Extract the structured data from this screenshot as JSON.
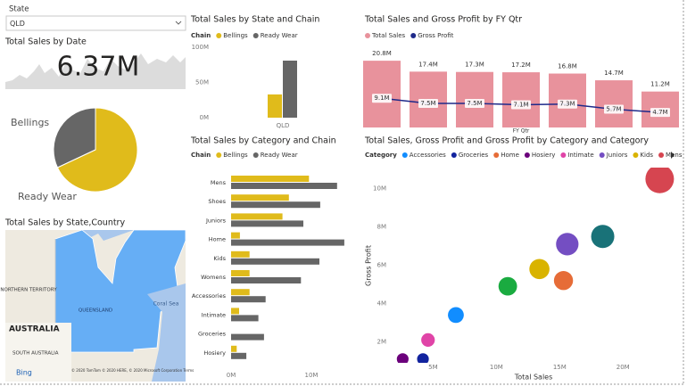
{
  "slicer": {
    "label": "State",
    "value": "QLD"
  },
  "card": {
    "title": "Total Sales by Date",
    "value": "6.37M"
  },
  "map": {
    "title": "Total Sales by State,Country",
    "labels": [
      "NORTHERN TERRITORY",
      "QUEENSLAND",
      "Coral Sea",
      "AUSTRALIA",
      "SOUTH AUSTRALIA"
    ],
    "provider": "Bing",
    "attribution": "© 2020 TomTom © 2020 HERE, © 2020 Microsoft Corporation Terms"
  },
  "chart_data": [
    {
      "type": "pie",
      "categories": [
        "Bellings",
        "Ready Wear"
      ],
      "values": [
        32,
        68
      ],
      "colors": [
        "#666666",
        "#e0bb1b"
      ]
    },
    {
      "type": "bar",
      "title": "Total Sales by State and Chain",
      "legend_title": "Chain",
      "categories": [
        "QLD"
      ],
      "series": [
        {
          "name": "Bellings",
          "color": "#e0bb1b",
          "values": [
            33000000
          ]
        },
        {
          "name": "Ready Wear",
          "color": "#666666",
          "values": [
            81000000
          ]
        }
      ],
      "ylim": [
        0,
        100000000
      ],
      "yticks": [
        {
          "value": 0,
          "label": "0M"
        },
        {
          "value": 50000000,
          "label": "50M"
        },
        {
          "value": 100000000,
          "label": "100M"
        }
      ]
    },
    {
      "type": "combo",
      "title": "Total Sales and Gross Profit by FY Qtr",
      "x_label": "FY Qtr",
      "categories": [
        null,
        null,
        null,
        null,
        null,
        null,
        null
      ],
      "series": [
        {
          "name": "Total Sales",
          "type": "bar",
          "color": "#e8929c",
          "values": [
            20.8,
            17.4,
            17.3,
            17.2,
            16.8,
            14.7,
            11.2
          ],
          "value_labels": [
            "20.8M",
            "17.4M",
            "17.3M",
            "17.2M",
            "16.8M",
            "14.7M",
            "11.2M"
          ]
        },
        {
          "name": "Gross Profit",
          "type": "line",
          "color": "#1f2a8a",
          "values": [
            9.1,
            7.5,
            7.5,
            7.1,
            7.3,
            5.7,
            4.7
          ],
          "value_labels": [
            "9.1M",
            "7.5M",
            "7.5M",
            "7.1M",
            "7.3M",
            "5.7M",
            "4.7M"
          ]
        }
      ]
    },
    {
      "type": "hbar",
      "title": "Total Sales by Category and Chain",
      "legend_title": "Chain",
      "categories": [
        "Mens",
        "Shoes",
        "Juniors",
        "Home",
        "Kids",
        "Womens",
        "Accessories",
        "Intimate",
        "Groceries",
        "Hosiery"
      ],
      "series": [
        {
          "name": "Bellings",
          "color": "#e0bb1b",
          "values": [
            9700000,
            7200000,
            6400000,
            1100000,
            2300000,
            2300000,
            2300000,
            1000000,
            0,
            700000
          ]
        },
        {
          "name": "Ready Wear",
          "color": "#666666",
          "values": [
            13200000,
            11100000,
            9000000,
            14100000,
            11000000,
            8700000,
            4300000,
            3400000,
            4100000,
            1900000
          ]
        }
      ],
      "xlim": [
        0,
        15000000
      ],
      "xticks": [
        {
          "value": 0,
          "label": "0M"
        },
        {
          "value": 10000000,
          "label": "10M"
        }
      ]
    },
    {
      "type": "scatter",
      "title": "Total Sales, Gross Profit and Gross Profit by Category and Category",
      "legend_title": "Category",
      "x_label": "Total Sales",
      "y_label": "Gross Profit",
      "series": [
        {
          "name": "Accessories",
          "color": "#118dff",
          "x": [
            6800000
          ],
          "values": [
            3400000
          ]
        },
        {
          "name": "Groceries",
          "color": "#12239e",
          "x": [
            4200000
          ],
          "values": [
            1100000
          ]
        },
        {
          "name": "Home",
          "color": "#e66c37",
          "x": [
            15300000
          ],
          "values": [
            5200000
          ]
        },
        {
          "name": "Hosiery",
          "color": "#6b007b",
          "x": [
            2600000
          ],
          "values": [
            1100000
          ]
        },
        {
          "name": "Intimate",
          "color": "#e044a7",
          "x": [
            4600000
          ],
          "values": [
            2100000
          ]
        },
        {
          "name": "Juniors",
          "color": "#744ec2",
          "x": [
            15600000
          ],
          "values": [
            7100000
          ]
        },
        {
          "name": "Kids",
          "color": "#d9b300",
          "x": [
            13400000
          ],
          "values": [
            5800000
          ]
        },
        {
          "name": "Mens",
          "color": "#d64550",
          "x": [
            22900000
          ],
          "values": [
            10500000
          ]
        },
        {
          "color": "#197278",
          "x": [
            18400000
          ],
          "values": [
            7500000
          ]
        },
        {
          "color": "#1aab40",
          "x": [
            10900000
          ],
          "values": [
            4900000
          ]
        }
      ],
      "xlim": [
        1800000,
        24000000
      ],
      "ylim": [
        1000000,
        11000000
      ],
      "xticks": [
        {
          "value": 5000000,
          "label": "5M"
        },
        {
          "value": 10000000,
          "label": "10M"
        },
        {
          "value": 15000000,
          "label": "15M"
        },
        {
          "value": 20000000,
          "label": "20M"
        }
      ],
      "yticks": [
        {
          "value": 2000000,
          "label": "2M"
        },
        {
          "value": 4000000,
          "label": "4M"
        },
        {
          "value": 6000000,
          "label": "6M"
        },
        {
          "value": 8000000,
          "label": "8M"
        },
        {
          "value": 10000000,
          "label": "10M"
        }
      ]
    }
  ]
}
